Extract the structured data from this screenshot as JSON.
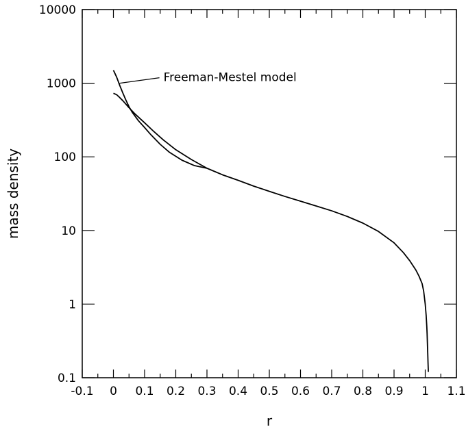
{
  "chart_data": {
    "type": "line",
    "title": "",
    "xlabel": "r",
    "ylabel": "mass density",
    "xlim": [
      -0.1,
      1.1
    ],
    "ylim": [
      0.1,
      10000
    ],
    "yscale": "log",
    "grid": false,
    "x_ticks": [
      -0.1,
      0,
      0.1,
      0.2,
      0.3,
      0.4,
      0.5,
      0.6,
      0.7,
      0.8,
      0.9,
      1,
      1.1
    ],
    "x_tick_labels": [
      "-0.1",
      "0",
      "0.1",
      "0.2",
      "0.3",
      "0.4",
      "0.5",
      "0.6",
      "0.7",
      "0.8",
      "0.9",
      "1",
      "1.1"
    ],
    "y_ticks": [
      0.1,
      1,
      10,
      100,
      1000,
      10000
    ],
    "y_tick_labels": [
      "0.1",
      "1",
      "10",
      "100",
      "1000",
      "10000"
    ],
    "annotations": [
      {
        "text": "Freeman-Mestel model",
        "points_to": {
          "x": 0.02,
          "y": 1000
        }
      }
    ],
    "series": [
      {
        "x": [
          0.0,
          0.01,
          0.02,
          0.03,
          0.04,
          0.05,
          0.07,
          0.1,
          0.13,
          0.16,
          0.2,
          0.25,
          0.3,
          0.35,
          0.4,
          0.45,
          0.5,
          0.55,
          0.6,
          0.65,
          0.7,
          0.75,
          0.8,
          0.85,
          0.9,
          0.93,
          0.95,
          0.97,
          0.98,
          0.99,
          0.995,
          1.0,
          1.003,
          1.005,
          1.006,
          1.007,
          1.008,
          1.009,
          1.01
        ],
        "values": [
          730,
          700,
          640,
          580,
          520,
          465,
          380,
          290,
          220,
          170,
          125,
          92,
          70,
          57,
          48,
          40,
          34,
          29,
          25,
          21.5,
          18.5,
          15.5,
          12.6,
          9.7,
          6.8,
          5.0,
          3.9,
          2.9,
          2.4,
          1.9,
          1.5,
          1.0,
          0.7,
          0.5,
          0.4,
          0.3,
          0.22,
          0.16,
          0.12
        ]
      },
      {
        "x": [
          0.0,
          0.01,
          0.02,
          0.03,
          0.04,
          0.05,
          0.06,
          0.08,
          0.1,
          0.12,
          0.15,
          0.18,
          0.22,
          0.26,
          0.3
        ],
        "values": [
          1500,
          1220,
          940,
          740,
          590,
          480,
          405,
          310,
          250,
          200,
          148,
          115,
          90,
          76,
          70
        ]
      }
    ]
  }
}
